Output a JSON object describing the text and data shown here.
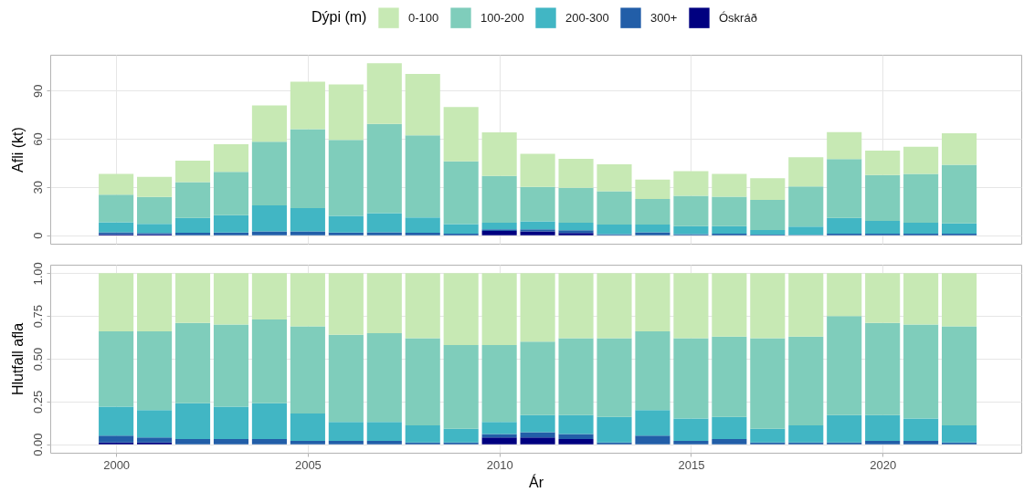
{
  "chart_data": [
    {
      "type": "bar",
      "stacked": true,
      "ylabel": "Afli (kt)",
      "legend_title": "Dýpi (m)",
      "legend": "top",
      "grid": true,
      "tick_labels": "y",
      "x": [
        2000,
        2001,
        2002,
        2003,
        2004,
        2005,
        2006,
        2007,
        2008,
        2009,
        2010,
        2011,
        2012,
        2013,
        2014,
        2015,
        2016,
        2017,
        2018,
        2019,
        2020,
        2021,
        2022
      ],
      "xlim": [
        1998.4,
        2023.5
      ],
      "xticks": [
        2000,
        2005,
        2010,
        2015,
        2020
      ],
      "ylim": [
        -5.3,
        112.3
      ],
      "yticks": [
        0,
        30,
        60,
        90
      ],
      "series": [
        {
          "name": "Óskráð",
          "color": "#000080",
          "values": [
            0.5,
            0.5,
            null,
            null,
            null,
            null,
            null,
            null,
            null,
            null,
            2.6,
            2.3,
            1.4,
            null,
            null,
            null,
            null,
            null,
            null,
            null,
            null,
            null,
            null
          ]
        },
        {
          "name": "300+",
          "color": "#225ea8",
          "values": [
            1.3,
            0.9,
            1.5,
            1.6,
            2.3,
            2.4,
            1.6,
            1.8,
            1.5,
            1.0,
            1.0,
            1.4,
            1.7,
            0.6,
            1.8,
            0.7,
            1.0,
            0.4,
            0.3,
            0.9,
            0.9,
            1.0,
            0.9
          ]
        },
        {
          "name": "200-300",
          "color": "#41b6c4",
          "values": [
            6.3,
            5.7,
            9.3,
            10.8,
            16.2,
            14.5,
            10.4,
            12.0,
            9.5,
            5.9,
            4.2,
            4.9,
            4.7,
            6.1,
            4.9,
            5.0,
            4.7,
            2.8,
            5.0,
            9.9,
            8.0,
            6.8,
            6.5
          ]
        },
        {
          "name": "100-200",
          "color": "#7fcdbb",
          "values": [
            17.2,
            16.7,
            22.2,
            27.1,
            39.7,
            49.1,
            47.3,
            55.4,
            51.1,
            39.1,
            29.1,
            21.5,
            21.7,
            20.7,
            15.9,
            18.8,
            18.3,
            18.7,
            25.1,
            36.6,
            28.6,
            30.4,
            36.5
          ]
        },
        {
          "name": "0-100",
          "color": "#c7e9b4",
          "values": [
            12.8,
            12.5,
            13.4,
            17.1,
            22.5,
            29.5,
            34.6,
            37.9,
            38.3,
            33.8,
            27.1,
            20.5,
            18.1,
            16.7,
            12.0,
            15.3,
            14.2,
            13.5,
            18.1,
            16.7,
            15.2,
            16.8,
            19.6
          ]
        }
      ]
    },
    {
      "type": "bar",
      "stacked": true,
      "xlabel": "Ár",
      "ylabel": "Hlutfall afla",
      "legend": false,
      "grid": true,
      "x": [
        2000,
        2001,
        2002,
        2003,
        2004,
        2005,
        2006,
        2007,
        2008,
        2009,
        2010,
        2011,
        2012,
        2013,
        2014,
        2015,
        2016,
        2017,
        2018,
        2019,
        2020,
        2021,
        2022
      ],
      "xlim": [
        1998.4,
        2023.5
      ],
      "xticks": [
        2000,
        2005,
        2010,
        2015,
        2020
      ],
      "ylim": [
        -0.05,
        1.05
      ],
      "yticks": [
        {
          "value": 0,
          "label": "0.00"
        },
        {
          "value": 0.25,
          "label": "0.25"
        },
        {
          "value": 0.5,
          "label": "0.50"
        },
        {
          "value": 0.75,
          "label": "0.75"
        },
        {
          "value": 1,
          "label": "1.00"
        }
      ],
      "series": [
        {
          "color": "#000080",
          "values": [
            0.01,
            0.01,
            null,
            null,
            null,
            null,
            null,
            null,
            null,
            null,
            0.04,
            0.04,
            0.03,
            null,
            null,
            null,
            null,
            null,
            null,
            null,
            null,
            null,
            null
          ]
        },
        {
          "color": "#225ea8",
          "values": [
            0.04,
            0.03,
            0.03,
            0.03,
            0.03,
            0.02,
            0.02,
            0.02,
            0.01,
            0.01,
            0.02,
            0.03,
            0.03,
            0.01,
            0.05,
            0.02,
            0.03,
            0.01,
            0.01,
            0.01,
            0.02,
            0.02,
            0.01
          ]
        },
        {
          "color": "#41b6c4",
          "values": [
            0.17,
            0.16,
            0.21,
            0.19,
            0.21,
            0.16,
            0.11,
            0.11,
            0.1,
            0.08,
            0.07,
            0.1,
            0.11,
            0.15,
            0.15,
            0.13,
            0.13,
            0.08,
            0.1,
            0.16,
            0.15,
            0.13,
            0.1
          ]
        },
        {
          "color": "#7fcdbb",
          "values": [
            0.44,
            0.46,
            0.47,
            0.48,
            0.49,
            0.51,
            0.51,
            0.52,
            0.51,
            0.49,
            0.45,
            0.43,
            0.45,
            0.46,
            0.46,
            0.47,
            0.47,
            0.53,
            0.52,
            0.58,
            0.54,
            0.55,
            0.58
          ]
        },
        {
          "color": "#c7e9b4",
          "values": [
            0.34,
            0.34,
            0.29,
            0.3,
            0.27,
            0.31,
            0.36,
            0.35,
            0.38,
            0.42,
            0.42,
            0.4,
            0.38,
            0.38,
            0.34,
            0.38,
            0.37,
            0.38,
            0.37,
            0.25,
            0.29,
            0.3,
            0.31
          ]
        }
      ]
    }
  ]
}
